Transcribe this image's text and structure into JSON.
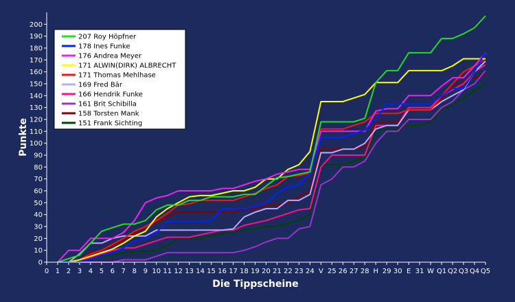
{
  "chart_data": {
    "type": "line",
    "xlabel": "Die Tippscheine",
    "ylabel": "Punkte",
    "ylim": [
      0,
      210
    ],
    "yticks": [
      0,
      10,
      20,
      30,
      40,
      50,
      60,
      70,
      80,
      90,
      100,
      110,
      120,
      130,
      140,
      150,
      160,
      170,
      180,
      190,
      200
    ],
    "categories": [
      "0",
      "1",
      "2",
      "3",
      "4",
      "5",
      "6",
      "7",
      "8",
      "9",
      "10",
      "11",
      "12",
      "13",
      "14",
      "15",
      "16",
      "17",
      "18",
      "19",
      "20",
      "21",
      "22",
      "23",
      "24",
      "V",
      "25",
      "26",
      "27",
      "28",
      "H",
      "29",
      "30",
      "E",
      "31",
      "W",
      "Q1",
      "Q2",
      "Q3",
      "Q4",
      "Q5"
    ],
    "legend_position": "top-left",
    "grid": false,
    "series": [
      {
        "name": "207 Roy Höpfner",
        "color": "#22dd22",
        "values": [
          null,
          0,
          3,
          6,
          16,
          26,
          29,
          32,
          32,
          35,
          44,
          48,
          48,
          52,
          52,
          55,
          55,
          55,
          57,
          57,
          64,
          71,
          72,
          74,
          76,
          118,
          118,
          118,
          118,
          121,
          151,
          161,
          161,
          176,
          176,
          176,
          188,
          188,
          192,
          197,
          207
        ]
      },
      {
        "name": "178 Ines Funke",
        "color": "#0022ff",
        "values": [
          null,
          0,
          0,
          0,
          3,
          6,
          8,
          12,
          18,
          20,
          25,
          34,
          34,
          34,
          34,
          35,
          45,
          45,
          45,
          47,
          50,
          58,
          63,
          65,
          75,
          105,
          105,
          105,
          108,
          111,
          120,
          133,
          133,
          133,
          133,
          133,
          140,
          146,
          146,
          160,
          177
        ]
      },
      {
        "name": "176 Andrea Meyer",
        "color": "#ee22ee",
        "values": [
          null,
          0,
          10,
          10,
          20,
          20,
          20,
          25,
          35,
          50,
          54,
          56,
          60,
          60,
          60,
          60,
          62,
          62,
          65,
          68,
          70,
          74,
          76,
          78,
          78,
          110,
          110,
          110,
          110,
          110,
          127,
          129,
          129,
          140,
          140,
          140,
          148,
          155,
          155,
          165,
          176
        ]
      },
      {
        "name": "171 ALWIN(DIRK) ALBRECHT",
        "color": "#ffff00",
        "values": [
          null,
          0,
          0,
          2,
          5,
          8,
          11,
          16,
          22,
          26,
          38,
          45,
          50,
          55,
          56,
          56,
          58,
          60,
          60,
          63,
          70,
          70,
          78,
          82,
          93,
          135,
          135,
          135,
          138,
          141,
          151,
          151,
          151,
          161,
          161,
          161,
          161,
          165,
          171,
          171,
          171
        ]
      },
      {
        "name": "171 Thomas Mehlhase",
        "color": "#ff1111",
        "values": [
          null,
          0,
          0,
          2,
          7,
          10,
          15,
          20,
          26,
          30,
          35,
          41,
          48,
          49,
          52,
          52,
          52,
          52,
          55,
          58,
          62,
          65,
          72,
          73,
          75,
          112,
          112,
          112,
          115,
          118,
          125,
          125,
          125,
          128,
          128,
          128,
          140,
          150,
          160,
          165,
          171
        ]
      },
      {
        "name": "169 Fred Bär",
        "color": "#c0a8ff",
        "values": [
          null,
          0,
          0,
          7,
          16,
          16,
          20,
          22,
          22,
          22,
          27,
          27,
          27,
          27,
          27,
          27,
          27,
          28,
          38,
          42,
          45,
          45,
          52,
          52,
          57,
          92,
          92,
          95,
          95,
          100,
          112,
          115,
          115,
          128,
          128,
          128,
          135,
          140,
          145,
          160,
          169
        ]
      },
      {
        "name": "166 Hendrik Funke",
        "color": "#ff1188",
        "values": [
          null,
          0,
          0,
          0,
          4,
          7,
          10,
          12,
          12,
          15,
          18,
          21,
          21,
          21,
          23,
          25,
          27,
          27,
          31,
          33,
          35,
          38,
          41,
          44,
          45,
          80,
          90,
          90,
          90,
          90,
          115,
          115,
          115,
          130,
          130,
          130,
          140,
          145,
          150,
          160,
          166
        ]
      },
      {
        "name": "161 Brit Schibilla",
        "color": "#9933cc",
        "values": [
          null,
          0,
          0,
          0,
          0,
          0,
          0,
          2,
          2,
          2,
          5,
          8,
          8,
          8,
          8,
          8,
          8,
          8,
          10,
          13,
          17,
          20,
          20,
          28,
          30,
          65,
          70,
          80,
          80,
          85,
          100,
          110,
          110,
          120,
          120,
          120,
          130,
          135,
          145,
          150,
          161
        ]
      },
      {
        "name": "158 Torsten Mank",
        "color": "#880000",
        "values": [
          null,
          0,
          0,
          2,
          8,
          10,
          14,
          18,
          24,
          28,
          34,
          38,
          42,
          42,
          42,
          42,
          42,
          42,
          45,
          45,
          48,
          48,
          50,
          55,
          60,
          95,
          95,
          95,
          95,
          97,
          118,
          118,
          118,
          128,
          128,
          128,
          138,
          148,
          152,
          155,
          158
        ]
      },
      {
        "name": "151 Frank Sichting",
        "color": "#004400",
        "values": [
          null,
          0,
          0,
          3,
          5,
          5,
          6,
          8,
          9,
          9,
          10,
          14,
          20,
          20,
          20,
          22,
          24,
          25,
          27,
          28,
          30,
          30,
          33,
          35,
          40,
          82,
          82,
          82,
          85,
          88,
          110,
          112,
          112,
          115,
          115,
          118,
          128,
          132,
          138,
          144,
          151
        ]
      }
    ]
  }
}
